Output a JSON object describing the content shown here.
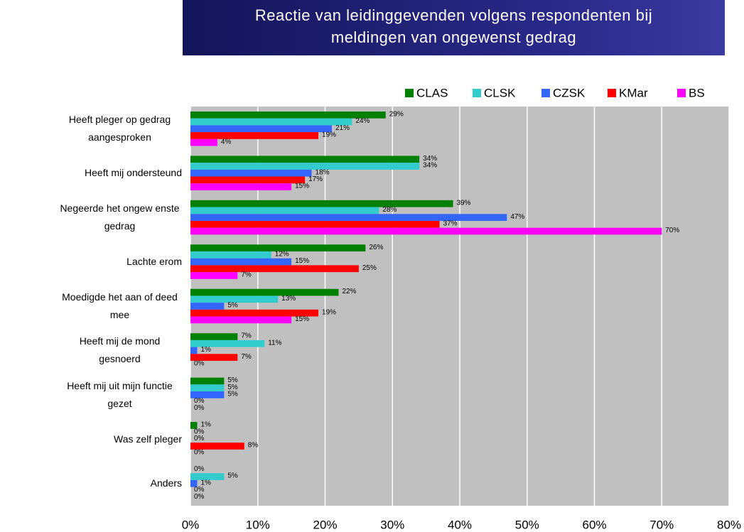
{
  "chart_data": {
    "type": "bar",
    "orientation": "horizontal",
    "title": "Reactie van leidinggevenden volgens respondenten bij meldingen van ongewenst gedrag",
    "categories": [
      "Heeft pleger op gedrag aangesproken",
      "Heeft mij ondersteund",
      "Negeerde het ongew enste gedrag",
      "Lachte erom",
      "Moedigde het aan of deed mee",
      "Heeft mij de mond gesnoerd",
      "Heeft mij uit mijn functie gezet",
      "Was zelf pleger",
      "Anders"
    ],
    "series": [
      {
        "name": "CLAS",
        "color": "#008000",
        "values": [
          29,
          34,
          39,
          26,
          22,
          7,
          5,
          1,
          0
        ],
        "value_labels": [
          "29%",
          "34%",
          "39%",
          "26%",
          "22%",
          "7%",
          "5%",
          "1%",
          "0%"
        ]
      },
      {
        "name": "CLSK",
        "color": "#33cccc",
        "values": [
          24,
          34,
          28,
          12,
          13,
          11,
          5,
          0,
          5
        ],
        "value_labels": [
          "24%",
          "34%",
          "28%",
          "12%",
          "13%",
          "11%",
          "5%",
          "0%",
          "5%"
        ]
      },
      {
        "name": "CZSK",
        "color": "#3366ff",
        "values": [
          21,
          18,
          47,
          15,
          5,
          1,
          5,
          0,
          1
        ],
        "value_labels": [
          "21%",
          "18%",
          "47%",
          "15%",
          "5%",
          "1%",
          "5%",
          "0%",
          "1%"
        ]
      },
      {
        "name": "KMar",
        "color": "#ff0000",
        "values": [
          19,
          17,
          37,
          25,
          19,
          7,
          0,
          8,
          0
        ],
        "value_labels": [
          "19%",
          "17%",
          "37%",
          "25%",
          "19%",
          "7%",
          "0%",
          "8%",
          "0%"
        ]
      },
      {
        "name": "BS",
        "color": "#ff00ff",
        "values": [
          4,
          15,
          70,
          7,
          15,
          0,
          0,
          0,
          0
        ],
        "value_labels": [
          "4%",
          "15%",
          "70%",
          "7%",
          "15%",
          "0%",
          "0%",
          "0%",
          "0%"
        ]
      }
    ],
    "xlim": [
      0,
      80
    ],
    "xticks": [
      {
        "value": 0,
        "label": "0%"
      },
      {
        "value": 10,
        "label": "10%"
      },
      {
        "value": 20,
        "label": "20%"
      },
      {
        "value": 30,
        "label": "30%"
      },
      {
        "value": 40,
        "label": "40%"
      },
      {
        "value": 50,
        "label": "50%"
      },
      {
        "value": 60,
        "label": "60%"
      },
      {
        "value": 70,
        "label": "70%"
      },
      {
        "value": 80,
        "label": "80%"
      }
    ],
    "grid": true,
    "legend": "top"
  }
}
